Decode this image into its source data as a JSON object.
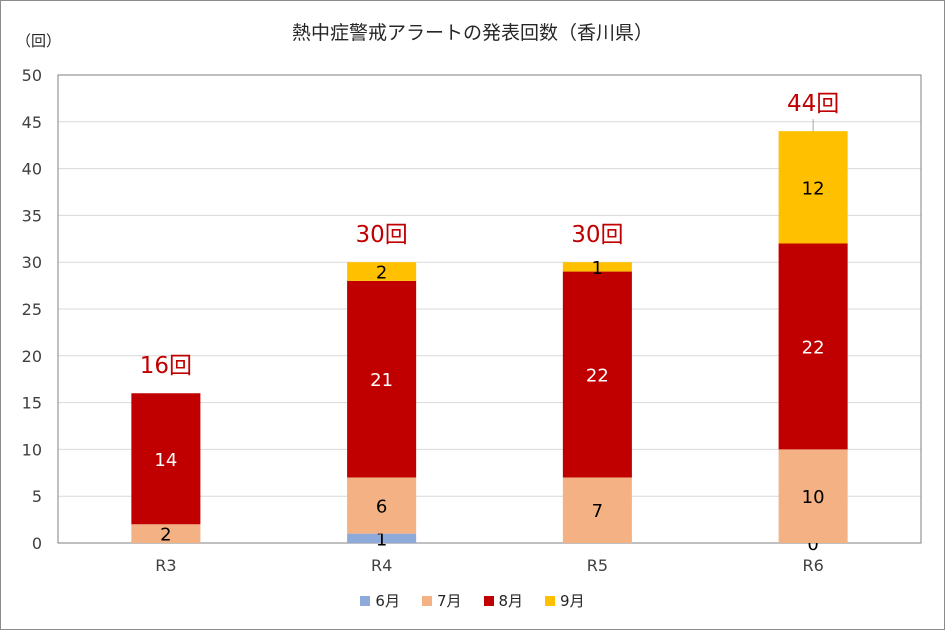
{
  "chart_data": {
    "type": "bar",
    "stacked": true,
    "title": "熱中症警戒アラートの発表回数（香川県）",
    "ylabel": "（回）",
    "xlabel": "",
    "ylim": [
      0,
      50
    ],
    "yticks": [
      0,
      5,
      10,
      15,
      20,
      25,
      30,
      35,
      40,
      45,
      50
    ],
    "grid": true,
    "legend_position": "bottom",
    "categories": [
      "R3",
      "R4",
      "R5",
      "R6"
    ],
    "series": [
      {
        "name": "6月",
        "color": "#8eaadb",
        "values": [
          0,
          1,
          0,
          0
        ],
        "labels": [
          "",
          "1",
          "",
          "0"
        ]
      },
      {
        "name": "7月",
        "color": "#f4b183",
        "values": [
          2,
          6,
          7,
          10
        ],
        "labels": [
          "2",
          "6",
          "7",
          "10"
        ]
      },
      {
        "name": "8月",
        "color": "#c00000",
        "values": [
          14,
          21,
          22,
          22
        ],
        "labels": [
          "14",
          "21",
          "22",
          "22"
        ]
      },
      {
        "name": "9月",
        "color": "#ffc000",
        "values": [
          0,
          2,
          1,
          12
        ],
        "labels": [
          "",
          "2",
          "1",
          "12"
        ]
      }
    ],
    "totals": [
      "16回",
      "30回",
      "30回",
      "44回"
    ],
    "total_color": "#c00000"
  }
}
